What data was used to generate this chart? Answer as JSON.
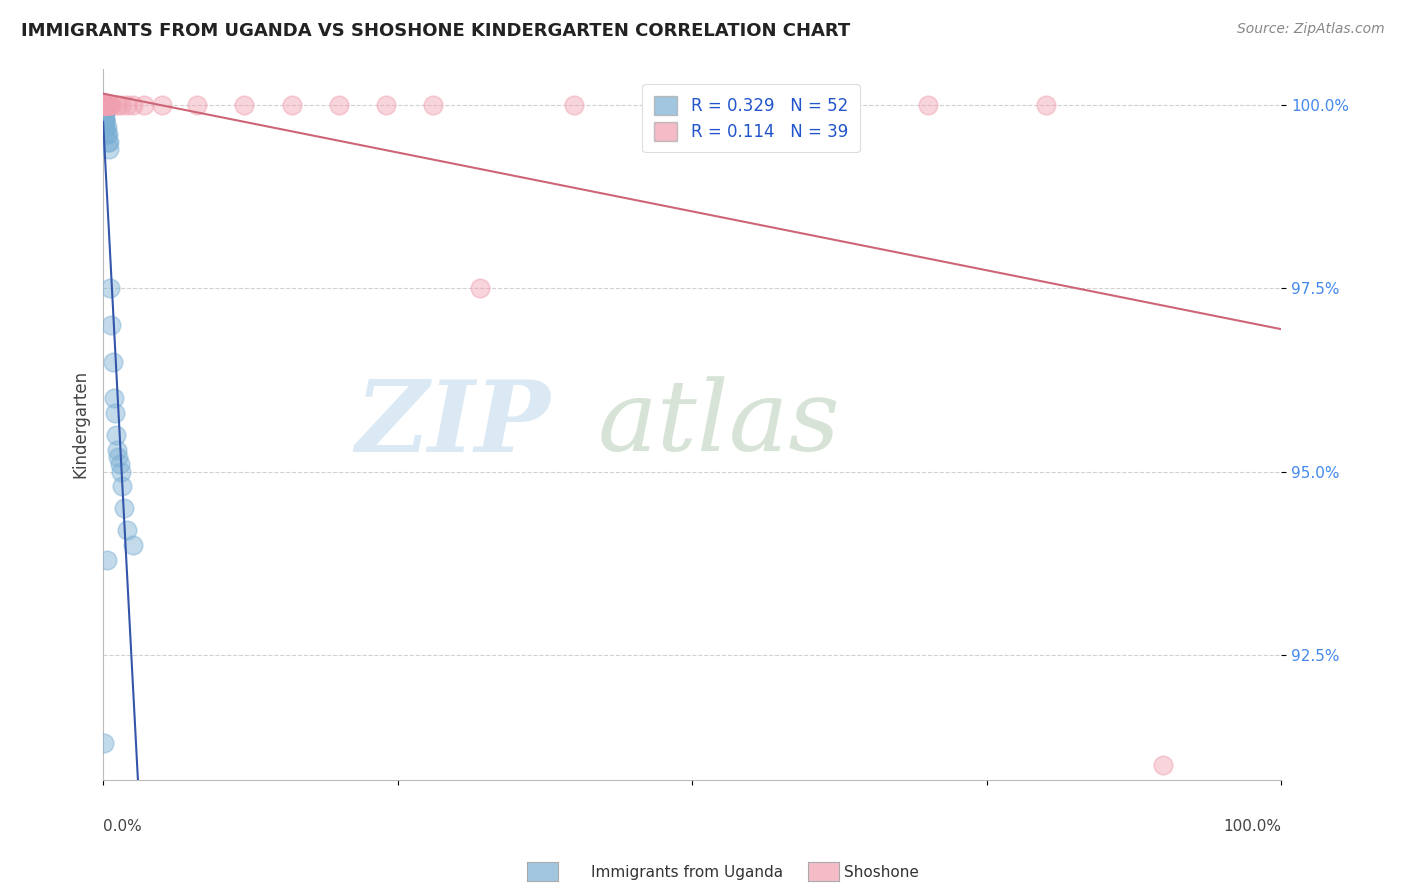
{
  "title": "IMMIGRANTS FROM UGANDA VS SHOSHONE KINDERGARTEN CORRELATION CHART",
  "source": "Source: ZipAtlas.com",
  "ylabel": "Kindergarten",
  "ytick_labels": [
    "92.5%",
    "95.0%",
    "97.5%",
    "100.0%"
  ],
  "ytick_values": [
    0.925,
    0.95,
    0.975,
    1.0
  ],
  "legend_label1": "Immigrants from Uganda",
  "legend_label2": "Shoshone",
  "R1": 0.329,
  "N1": 52,
  "R2": 0.114,
  "N2": 39,
  "blue_color": "#7bafd4",
  "pink_color": "#f0a0b0",
  "blue_line_color": "#3355aa",
  "pink_line_color": "#cc6677",
  "blue_scatter_x": [
    0.0002,
    0.0002,
    0.0002,
    0.0003,
    0.0003,
    0.0003,
    0.0004,
    0.0004,
    0.0004,
    0.0005,
    0.0005,
    0.0006,
    0.0006,
    0.0007,
    0.0007,
    0.0008,
    0.0008,
    0.0009,
    0.001,
    0.001,
    0.001,
    0.001,
    0.0012,
    0.0013,
    0.0014,
    0.0015,
    0.0016,
    0.002,
    0.002,
    0.002,
    0.003,
    0.003,
    0.004,
    0.004,
    0.005,
    0.005,
    0.006,
    0.007,
    0.008,
    0.009,
    0.01,
    0.011,
    0.012,
    0.013,
    0.014,
    0.015,
    0.016,
    0.018,
    0.02,
    0.025,
    0.003,
    0.001
  ],
  "blue_scatter_y": [
    1.0,
    1.0,
    1.0,
    1.0,
    1.0,
    1.0,
    1.0,
    1.0,
    0.999,
    1.0,
    0.999,
    1.0,
    0.999,
    1.0,
    0.999,
    1.0,
    0.999,
    0.998,
    1.0,
    1.0,
    0.999,
    0.998,
    0.999,
    0.999,
    0.998,
    0.998,
    0.997,
    0.998,
    0.997,
    0.996,
    0.997,
    0.996,
    0.996,
    0.995,
    0.995,
    0.994,
    0.975,
    0.97,
    0.965,
    0.96,
    0.958,
    0.955,
    0.953,
    0.952,
    0.951,
    0.95,
    0.948,
    0.945,
    0.942,
    0.94,
    0.938,
    0.913
  ],
  "pink_scatter_x": [
    0.0002,
    0.0002,
    0.0003,
    0.0003,
    0.0004,
    0.0005,
    0.0006,
    0.0007,
    0.0008,
    0.001,
    0.001,
    0.001,
    0.002,
    0.002,
    0.003,
    0.003,
    0.004,
    0.005,
    0.006,
    0.007,
    0.012,
    0.015,
    0.02,
    0.025,
    0.035,
    0.05,
    0.08,
    0.12,
    0.16,
    0.2,
    0.24,
    0.28,
    0.32,
    0.4,
    0.5,
    0.6,
    0.7,
    0.8,
    0.9
  ],
  "pink_scatter_y": [
    1.0,
    1.0,
    1.0,
    1.0,
    1.0,
    1.0,
    1.0,
    1.0,
    1.0,
    1.0,
    1.0,
    1.0,
    1.0,
    1.0,
    1.0,
    1.0,
    1.0,
    1.0,
    1.0,
    1.0,
    1.0,
    1.0,
    1.0,
    1.0,
    1.0,
    1.0,
    1.0,
    1.0,
    1.0,
    1.0,
    1.0,
    1.0,
    0.975,
    1.0,
    1.0,
    1.0,
    1.0,
    1.0,
    0.91
  ]
}
